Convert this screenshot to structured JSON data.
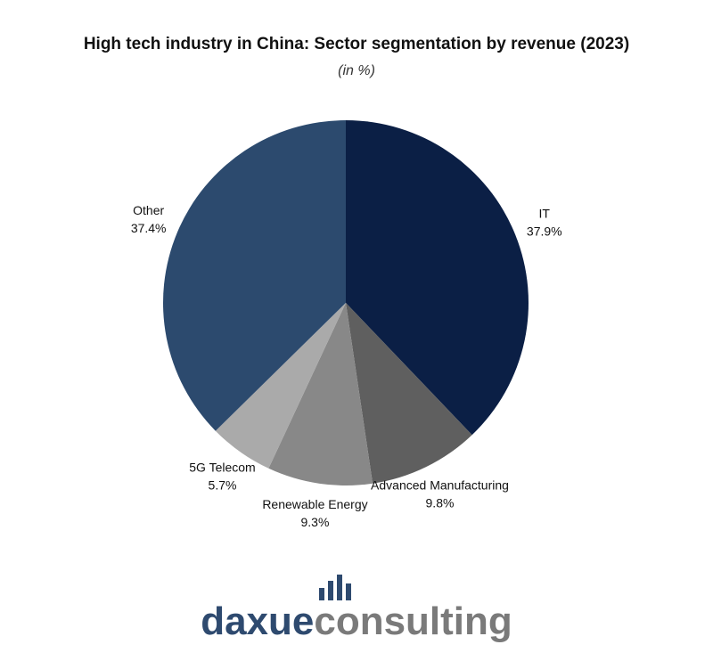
{
  "chart_data": {
    "type": "pie",
    "title": "High tech industry in China: Sector segmentation by revenue (2023)",
    "subtitle": "(in %)",
    "categories": [
      "IT",
      "Advanced Manufacturing",
      "Renewable Energy",
      "5G Telecom",
      "Other"
    ],
    "values": [
      37.9,
      9.8,
      9.3,
      5.7,
      37.4
    ],
    "value_labels": [
      "37.9%",
      "9.8%",
      "9.3%",
      "5.7%",
      "37.4%"
    ],
    "colors": [
      "#0b1f45",
      "#5f5f5f",
      "#888888",
      "#aaaaaa",
      "#2c4a6e"
    ]
  },
  "logo": {
    "part1": "daxue",
    "part2": "consulting"
  }
}
